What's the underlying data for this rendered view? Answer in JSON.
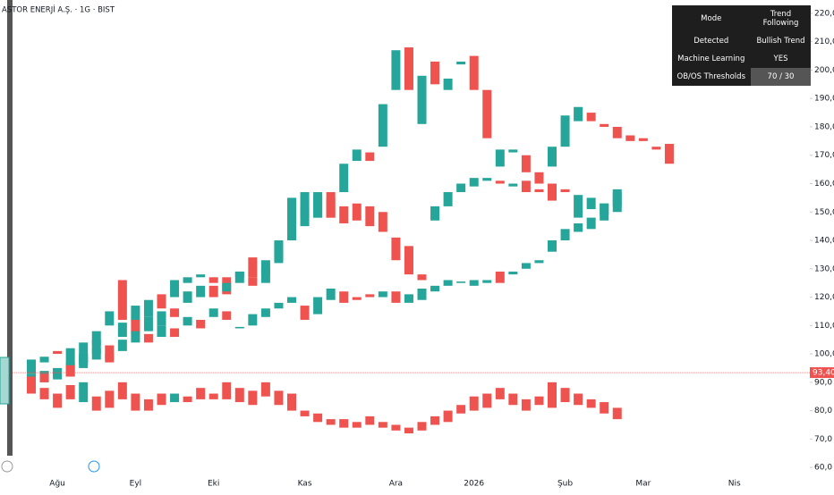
{
  "chart_data": {
    "type": "candlestick",
    "title": "ASTOR ENERJİ A.Ş. · 1G · BIST",
    "up_color": "#26a69a",
    "down_color": "#ef5350",
    "categories": [
      null,
      null,
      "Ağu",
      null,
      null,
      null,
      null,
      null,
      "Eyl",
      null,
      null,
      null,
      null,
      null,
      "Eki",
      null,
      null,
      null,
      null,
      null,
      null,
      "Kas",
      null,
      null,
      null,
      null,
      null,
      null,
      "Ara",
      null,
      null,
      null,
      null,
      null,
      "2026",
      null,
      null,
      null,
      null,
      null,
      null,
      "Şub",
      null,
      null,
      null,
      null,
      null,
      "Mar",
      null,
      null,
      null,
      null,
      null,
      null,
      "Nis"
    ],
    "series": [
      {
        "open": [
          93,
          97,
          101,
          96,
          97,
          103,
          110,
          126,
          111,
          113,
          121,
          120,
          125,
          127,
          127,
          127,
          127,
          134,
          125,
          132,
          142,
          148,
          148,
          157,
          157,
          168,
          171,
          173,
          193,
          208,
          181,
          203,
          193,
          202,
          205,
          193,
          166,
          171,
          170,
          164,
          166,
          173,
          182,
          185,
          181,
          180,
          177,
          176,
          173,
          174,
          null,
          null,
          null,
          null,
          null
        ],
        "close": [
          98,
          99,
          100,
          102,
          104,
          108,
          115,
          112,
          117,
          119,
          116,
          126,
          127,
          128,
          125,
          121,
          129,
          127,
          130,
          140,
          155,
          157,
          157,
          148,
          167,
          172,
          168,
          188,
          207,
          193,
          198,
          195,
          197,
          203,
          193,
          176,
          172,
          172,
          164,
          160,
          173,
          184,
          187,
          182,
          180,
          176,
          175,
          175,
          172,
          167,
          null,
          null,
          null,
          null,
          null
        ]
      },
      {
        "open": [
          88,
          90,
          95,
          92,
          96,
          100,
          103,
          106,
          112,
          108,
          110,
          116,
          118,
          120,
          124,
          122,
          125,
          127,
          128,
          133,
          140,
          145,
          148,
          155,
          152,
          153,
          152,
          150,
          141,
          138,
          128,
          147,
          152,
          157,
          159,
          161,
          161,
          159,
          161,
          158,
          160,
          158,
          148,
          151,
          149,
          150,
          null,
          null,
          null,
          null,
          null,
          null,
          null,
          null,
          null
        ],
        "close": [
          93,
          94,
          92,
          97,
          100,
          105,
          98,
          111,
          107,
          113,
          115,
          113,
          122,
          124,
          120,
          125,
          129,
          124,
          133,
          139,
          147,
          152,
          156,
          148,
          146,
          147,
          145,
          143,
          133,
          128,
          126,
          152,
          157,
          160,
          162,
          162,
          160,
          160,
          157,
          157,
          154,
          157,
          156,
          155,
          153,
          158,
          null,
          null,
          null,
          null,
          null,
          null,
          null,
          null,
          null
        ]
      },
      {
        "open": [
          92,
          93,
          91,
          96,
          95,
          98,
          100,
          101,
          104,
          107,
          106,
          109,
          110,
          112,
          113,
          115,
          109,
          110,
          113,
          116,
          118,
          117,
          114,
          119,
          122,
          120,
          121,
          120,
          122,
          118,
          119,
          122,
          124,
          125,
          124,
          125,
          129,
          128,
          130,
          132,
          136,
          140,
          143,
          144,
          147,
          152,
          null,
          null,
          null,
          null,
          null,
          null,
          null,
          null,
          null
        ],
        "close": [
          89,
          90,
          95,
          92,
          99,
          102,
          97,
          105,
          108,
          104,
          110,
          106,
          113,
          109,
          116,
          112,
          109.5,
          114,
          116,
          118,
          120,
          112,
          120,
          123,
          118,
          119,
          120,
          122,
          118,
          121,
          123,
          124,
          126,
          125.5,
          126,
          126,
          125,
          129,
          132,
          133,
          140,
          144,
          146,
          148,
          153,
          157,
          null,
          null,
          null,
          null,
          null,
          null,
          null,
          null,
          null
        ]
      },
      {
        "open": [
          91,
          88,
          86,
          89,
          83,
          85,
          87,
          90,
          86,
          84,
          86,
          83,
          85,
          88,
          86,
          90,
          88,
          87,
          90,
          87,
          86,
          80,
          79,
          77,
          77,
          76,
          78,
          76,
          75,
          74,
          76,
          78,
          80,
          82,
          85,
          86,
          88,
          86,
          84,
          85,
          90,
          88,
          86,
          84,
          83,
          81,
          null,
          null,
          null,
          null,
          null,
          null,
          null,
          null,
          null
        ],
        "close": [
          86,
          84,
          81,
          84,
          90,
          80,
          81,
          84,
          80,
          80,
          82,
          86,
          83,
          84,
          84,
          84,
          83,
          82,
          85,
          82,
          80,
          78,
          76,
          75,
          74,
          74,
          75,
          74,
          73,
          72,
          73,
          75,
          76,
          79,
          80,
          81,
          84,
          82,
          80,
          82,
          81,
          83,
          82,
          81,
          79,
          77,
          null,
          null,
          null,
          null,
          null,
          null,
          null,
          null,
          null
        ]
      }
    ],
    "price_line": {
      "value": 93.4,
      "label": "93,40"
    },
    "ylim": [
      57.2,
      224.7
    ],
    "yticks": [
      {
        "value": 60,
        "label": "60,0"
      },
      {
        "value": 70,
        "label": "70,0"
      },
      {
        "value": 80,
        "label": "80,0"
      },
      {
        "value": 90,
        "label": "90,0"
      },
      {
        "value": 100,
        "label": "100,0"
      },
      {
        "value": 110,
        "label": "110,0"
      },
      {
        "value": 120,
        "label": "120,0"
      },
      {
        "value": 130,
        "label": "130,0"
      },
      {
        "value": 140,
        "label": "140,0"
      },
      {
        "value": 150,
        "label": "150,0"
      },
      {
        "value": 160,
        "label": "160,0"
      },
      {
        "value": 170,
        "label": "170,0"
      },
      {
        "value": 180,
        "label": "180,0"
      },
      {
        "value": 190,
        "label": "190,0"
      },
      {
        "value": 200,
        "label": "200,0"
      },
      {
        "value": 210,
        "label": "210,0"
      },
      {
        "value": 220,
        "label": "220,0"
      }
    ],
    "info_table": [
      [
        "Mode",
        "Trend Following"
      ],
      [
        "Detected",
        "Bullish Trend"
      ],
      [
        "Machine Learning",
        "YES"
      ],
      [
        "OB/OS Thresholds",
        "70 / 30"
      ]
    ]
  }
}
